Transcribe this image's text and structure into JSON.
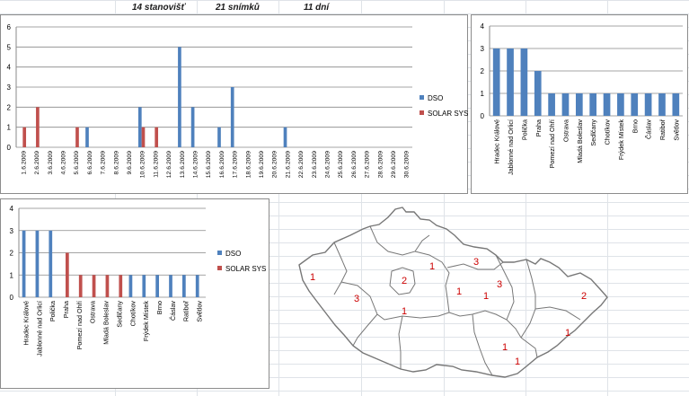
{
  "header": {
    "stations": "14 stanovišť",
    "frames": "21 snímků",
    "days": "11 dní"
  },
  "colors": {
    "dso": "#4f81bd",
    "solar": "#c0504d",
    "gridline": "#868686",
    "map_label": "#cc0000"
  },
  "chart_data": [
    {
      "type": "bar",
      "categories": [
        "1.6.2009",
        "2.6.2009",
        "3.6.2009",
        "4.6.2009",
        "5.6.2009",
        "6.6.2009",
        "7.6.2009",
        "8.6.2009",
        "9.6.2009",
        "10.6.2009",
        "11.6.2009",
        "12.6.2009",
        "13.6.2009",
        "14.6.2009",
        "15.6.2009",
        "16.6.2009",
        "17.6.2009",
        "18.6.2009",
        "19.6.2009",
        "20.6.2009",
        "21.6.2009",
        "22.6.2009",
        "23.6.2009",
        "24.6.2009",
        "25.6.2009",
        "26.6.2009",
        "27.6.2009",
        "28.6.2009",
        "29.6.2009",
        "30.6.2009"
      ],
      "series": [
        {
          "name": "DSO",
          "values": [
            0,
            0,
            0,
            0,
            0,
            1,
            0,
            0,
            0,
            2,
            0,
            0,
            5,
            2,
            0,
            1,
            3,
            0,
            0,
            0,
            1,
            0,
            0,
            0,
            0,
            0,
            0,
            0,
            0,
            0
          ]
        },
        {
          "name": "SOLAR SYS",
          "values": [
            1,
            2,
            0,
            0,
            1,
            0,
            0,
            0,
            0,
            1,
            1,
            0,
            0,
            0,
            0,
            0,
            0,
            0,
            0,
            0,
            0,
            0,
            0,
            0,
            0,
            0,
            0,
            0,
            0,
            0
          ]
        }
      ],
      "ylim": [
        0,
        6
      ],
      "yticks": [
        "0",
        "1",
        "2",
        "3",
        "4",
        "5",
        "6"
      ],
      "legend": "right"
    },
    {
      "type": "bar",
      "categories": [
        "Hradec Králové",
        "Jablonné nad Orlicí",
        "Polička",
        "Praha",
        "Pomezí nad Ohří",
        "Ostrava",
        "Mladá Boleslav",
        "Sedlčany",
        "Chotíkov",
        "Frýdek Místek",
        "Brno",
        "Čáslav",
        "Ratiboř",
        "Světlov"
      ],
      "series": [
        {
          "name": "",
          "values": [
            3,
            3,
            3,
            2,
            1,
            1,
            1,
            1,
            1,
            1,
            1,
            1,
            1,
            1
          ]
        }
      ],
      "ylim": [
        0,
        4
      ],
      "yticks": [
        "0",
        "1",
        "2",
        "3",
        "4"
      ]
    },
    {
      "type": "bar",
      "categories": [
        "Hradec Králové",
        "Jablonné nad Orlicí",
        "Polička",
        "Praha",
        "Pomezí nad Ohří",
        "Ostrava",
        "Mladá Boleslav",
        "Sedlčany",
        "Chotíkov",
        "Frýdek Místek",
        "Brno",
        "Čáslav",
        "Ratiboř",
        "Světlov"
      ],
      "series": [
        {
          "name": "DSO",
          "values": [
            3,
            3,
            3,
            0,
            0,
            0,
            0,
            0,
            1,
            1,
            1,
            1,
            1,
            1
          ]
        },
        {
          "name": "SOLAR SYS",
          "values": [
            0,
            0,
            0,
            2,
            1,
            1,
            1,
            1,
            0,
            0,
            0,
            0,
            0,
            0
          ]
        }
      ],
      "ylim": [
        0,
        4
      ],
      "yticks": [
        "0",
        "1",
        "2",
        "3",
        "4"
      ],
      "legend": "right"
    }
  ],
  "map": {
    "labels": [
      "1",
      "3",
      "2",
      "1",
      "1",
      "3",
      "3",
      "2",
      "1",
      "1",
      "1",
      "1",
      "1"
    ]
  }
}
